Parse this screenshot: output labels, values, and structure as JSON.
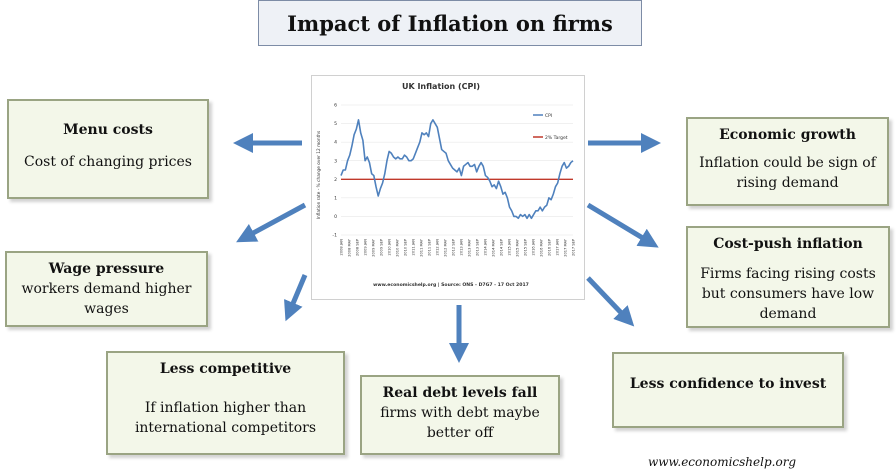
{
  "title": "Impact of Inflation on firms",
  "boxes": {
    "menu_costs": {
      "head": "Menu costs",
      "body": "Cost of changing prices"
    },
    "economic_growth": {
      "head": "Economic growth",
      "body": "Inflation could be sign of rising demand"
    },
    "wage_pressure": {
      "head": "Wage pressure",
      "body": "workers demand higher wages"
    },
    "cost_push": {
      "head": "Cost-push inflation",
      "body": "Firms facing rising costs but consumers have low demand"
    },
    "less_competitive": {
      "head": "Less competitive",
      "body": "If inflation higher than international competitors"
    },
    "real_debt": {
      "head": "Real debt levels fall",
      "body": "firms with debt maybe better off"
    },
    "less_confidence": {
      "head": "Less confidence to invest",
      "body": ""
    }
  },
  "footer": "www.economicshelp.org",
  "colors": {
    "arrow": "#4f81bd",
    "cpi_line": "#4f81bd",
    "target_line": "#c0392b",
    "box_fill": "#f3f7e9",
    "box_border": "#9aa483"
  },
  "chart_data": {
    "type": "line",
    "title": "UK Inflation (CPI)",
    "ylabel": "Inflation rate - % change over 12 months",
    "ylim": [
      -1,
      6
    ],
    "yticks": [
      -1,
      0,
      1,
      2,
      3,
      4,
      5,
      6
    ],
    "x_tick_labels": [
      "2008 JAN",
      "2008 MAY",
      "2008 SEP",
      "2009 JAN",
      "2009 MAY",
      "2009 SEP",
      "2010 JAN",
      "2010 MAY",
      "2010 SEP",
      "2011 JAN",
      "2011 MAY",
      "2011 SEP",
      "2012 JAN",
      "2012 MAY",
      "2012 SEP",
      "2013 JAN",
      "2013 MAY",
      "2013 SEP",
      "2014 JAN",
      "2014 MAY",
      "2014 SEP",
      "2015 JAN",
      "2015 MAY",
      "2015 SEP",
      "2016 JAN",
      "2016 MAY",
      "2016 SEP",
      "2017 JAN",
      "2017 MAY",
      "2017 SEP"
    ],
    "series": [
      {
        "name": "CPI",
        "values": [
          2.2,
          2.5,
          2.5,
          3.0,
          3.3,
          3.8,
          4.4,
          4.7,
          5.2,
          4.5,
          4.1,
          3.0,
          3.2,
          2.9,
          2.3,
          2.2,
          1.6,
          1.1,
          1.5,
          1.8,
          2.3,
          3.0,
          3.5,
          3.4,
          3.2,
          3.1,
          3.2,
          3.1,
          3.1,
          3.3,
          3.2,
          3.0,
          3.0,
          3.1,
          3.4,
          3.7,
          4.0,
          4.5,
          4.4,
          4.5,
          4.3,
          5.0,
          5.2,
          5.0,
          4.8,
          4.2,
          3.6,
          3.5,
          3.4,
          3.0,
          2.8,
          2.6,
          2.5,
          2.4,
          2.6,
          2.2,
          2.7,
          2.8,
          2.9,
          2.7,
          2.7,
          2.8,
          2.4,
          2.7,
          2.9,
          2.7,
          2.2,
          2.1,
          1.9,
          1.6,
          1.7,
          1.5,
          1.9,
          1.6,
          1.2,
          1.3,
          1.0,
          0.5,
          0.3,
          0.0,
          0.0,
          -0.1,
          0.1,
          0.0,
          0.1,
          -0.1,
          0.1,
          -0.1,
          0.1,
          0.3,
          0.3,
          0.5,
          0.3,
          0.5,
          0.6,
          1.0,
          0.9,
          1.2,
          1.6,
          1.8,
          2.3,
          2.7,
          2.9,
          2.6,
          2.7,
          2.9,
          3.0
        ]
      },
      {
        "name": "2% Target",
        "values": [
          2,
          2
        ]
      }
    ],
    "source": "www.economicshelp.org | Source: ONS - D7G7 - 17 Oct 2017",
    "grid": true,
    "legend": "top-right"
  }
}
